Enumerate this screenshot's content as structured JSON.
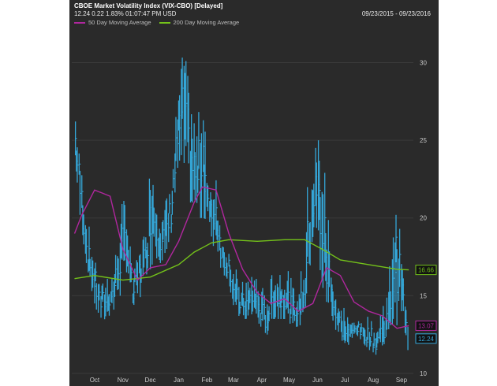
{
  "header": {
    "title": "CBOE Market Volatility Index (VIX-CBO) [Delayed]",
    "quote": "12.24   0.22   1.83%   01:07:47 PM   USD",
    "date_range": "09/23/2015 - 09/23/2016"
  },
  "colors": {
    "price": "#35a7d8",
    "ma50": "#b0279e",
    "ma200": "#74c21a",
    "background": "#2a2a2a",
    "grid": "#3b3b3b"
  },
  "chart_data": {
    "type": "line",
    "title": "CBOE Market Volatility Index (VIX-CBO) [Delayed]",
    "ylim": [
      10,
      32
    ],
    "y_ticks": [
      10,
      15,
      20,
      25,
      30
    ],
    "x_ticks": [
      "Oct",
      "Nov",
      "Dec",
      "Jan",
      "Feb",
      "Mar",
      "Apr",
      "May",
      "Jun",
      "Jul",
      "Aug",
      "Sep"
    ],
    "legend": [
      "50 Day Moving Average",
      "200 Day Moving Average"
    ],
    "last_values": {
      "ma200": "16.66",
      "ma50": "13.07",
      "price": "12.24"
    },
    "series": [
      {
        "name": "VIX (daily range)",
        "x": [
          "2015-09-24",
          "2015-10-01",
          "2015-10-08",
          "2015-10-15",
          "2015-10-22",
          "2015-10-29",
          "2015-11-05",
          "2015-11-12",
          "2015-11-19",
          "2015-11-26",
          "2015-12-03",
          "2015-12-10",
          "2015-12-17",
          "2015-12-24",
          "2015-12-31",
          "2016-01-07",
          "2016-01-14",
          "2016-01-21",
          "2016-01-28",
          "2016-02-04",
          "2016-02-11",
          "2016-02-18",
          "2016-02-25",
          "2016-03-03",
          "2016-03-10",
          "2016-03-17",
          "2016-03-24",
          "2016-03-31",
          "2016-04-07",
          "2016-04-14",
          "2016-04-21",
          "2016-04-28",
          "2016-05-05",
          "2016-05-12",
          "2016-05-19",
          "2016-05-26",
          "2016-06-02",
          "2016-06-09",
          "2016-06-16",
          "2016-06-23",
          "2016-06-30",
          "2016-07-07",
          "2016-07-14",
          "2016-07-21",
          "2016-07-28",
          "2016-08-04",
          "2016-08-11",
          "2016-08-18",
          "2016-08-25",
          "2016-09-01",
          "2016-09-08",
          "2016-09-15",
          "2016-09-22"
        ],
        "high": [
          27.0,
          24.5,
          20.0,
          18.0,
          16.0,
          16.5,
          16.2,
          20.5,
          21.5,
          16.5,
          18.0,
          19.0,
          25.5,
          21.0,
          21.8,
          22.5,
          27.5,
          31.5,
          28.0,
          25.5,
          29.0,
          22.0,
          22.5,
          19.0,
          18.5,
          17.0,
          16.0,
          16.5,
          17.0,
          16.0,
          15.5,
          17.5,
          17.0,
          17.0,
          16.0,
          15.5,
          20.0,
          26.5,
          25.0,
          26.0,
          19.0,
          15.5,
          14.5,
          13.5,
          14.0,
          13.5,
          13.8,
          13.5,
          14.5,
          16.0,
          20.5,
          19.0,
          13.0
        ],
        "low": [
          23.0,
          19.5,
          16.5,
          14.5,
          13.0,
          13.5,
          14.0,
          15.0,
          16.5,
          14.0,
          14.5,
          15.5,
          17.0,
          17.5,
          16.5,
          18.5,
          22.0,
          23.5,
          21.0,
          20.0,
          20.0,
          18.5,
          18.0,
          16.5,
          16.0,
          14.0,
          13.5,
          13.5,
          14.0,
          13.0,
          12.5,
          13.5,
          13.5,
          13.5,
          13.0,
          13.0,
          13.5,
          16.5,
          17.5,
          15.0,
          14.0,
          12.5,
          12.0,
          11.8,
          12.5,
          12.0,
          11.5,
          11.2,
          11.8,
          12.0,
          12.5,
          14.0,
          11.5
        ],
        "close": [
          25.0,
          21.0,
          17.5,
          16.0,
          14.5,
          14.8,
          15.2,
          17.5,
          19.0,
          15.0,
          16.5,
          17.5,
          21.0,
          19.0,
          18.5,
          20.5,
          25.0,
          27.0,
          24.0,
          22.5,
          24.5,
          20.0,
          20.5,
          17.5,
          17.0,
          15.0,
          14.5,
          14.5,
          15.0,
          14.0,
          13.5,
          15.0,
          15.0,
          15.0,
          14.0,
          14.0,
          16.0,
          21.0,
          21.5,
          18.0,
          15.5,
          13.5,
          12.8,
          12.5,
          13.0,
          12.5,
          12.5,
          12.0,
          12.8,
          13.5,
          17.5,
          16.0,
          12.24
        ]
      },
      {
        "name": "50 Day Moving Average",
        "x": [
          "2015-09-23",
          "2015-10-01",
          "2015-10-15",
          "2015-11-01",
          "2015-11-15",
          "2015-12-01",
          "2015-12-15",
          "2016-01-01",
          "2016-01-15",
          "2016-02-01",
          "2016-02-10",
          "2016-02-25",
          "2016-03-10",
          "2016-03-25",
          "2016-04-10",
          "2016-04-25",
          "2016-05-10",
          "2016-05-25",
          "2016-06-10",
          "2016-06-25",
          "2016-07-10",
          "2016-07-25",
          "2016-08-10",
          "2016-08-25",
          "2016-09-10",
          "2016-09-23"
        ],
        "values": [
          19.0,
          20.2,
          21.8,
          21.4,
          18.0,
          16.0,
          16.8,
          17.0,
          18.5,
          21.0,
          22.0,
          21.8,
          19.0,
          16.7,
          15.2,
          14.5,
          14.8,
          14.0,
          14.5,
          16.8,
          16.3,
          14.6,
          14.0,
          13.7,
          12.9,
          13.07
        ]
      },
      {
        "name": "200 Day Moving Average",
        "x": [
          "2015-09-23",
          "2015-10-15",
          "2015-11-15",
          "2015-12-15",
          "2016-01-15",
          "2016-02-01",
          "2016-02-20",
          "2016-03-10",
          "2016-04-10",
          "2016-05-10",
          "2016-06-01",
          "2016-06-20",
          "2016-07-10",
          "2016-08-10",
          "2016-09-10",
          "2016-09-23"
        ],
        "values": [
          16.1,
          16.3,
          16.0,
          16.2,
          17.0,
          17.8,
          18.4,
          18.6,
          18.5,
          18.6,
          18.6,
          18.0,
          17.3,
          17.0,
          16.7,
          16.66
        ]
      }
    ]
  }
}
